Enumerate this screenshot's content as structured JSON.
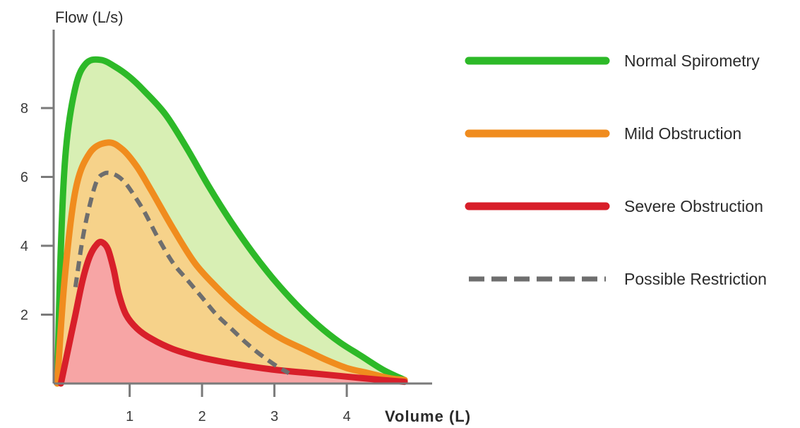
{
  "chart_data": {
    "type": "area",
    "xlabel": "Volume (L)",
    "ylabel": "Flow (L/s)",
    "xlim": [
      -0.05,
      5.2
    ],
    "ylim": [
      0,
      10.5
    ],
    "x_ticks": [
      1,
      2,
      3,
      4
    ],
    "y_ticks": [
      2,
      4,
      6,
      8
    ],
    "grid": false,
    "legend_position": "right",
    "series": [
      {
        "name": "Normal Spirometry",
        "color": "#2db928",
        "fill": "#d8efb4",
        "style": "solid",
        "x": [
          0,
          0.05,
          0.12,
          0.25,
          0.4,
          0.6,
          0.8,
          1.0,
          1.2,
          1.5,
          1.8,
          2.1,
          2.4,
          2.7,
          3.0,
          3.3,
          3.6,
          3.9,
          4.2,
          4.5,
          4.8
        ],
        "y": [
          0,
          4.0,
          6.8,
          8.6,
          9.3,
          9.4,
          9.2,
          8.9,
          8.5,
          7.8,
          6.8,
          5.7,
          4.7,
          3.8,
          3.0,
          2.3,
          1.7,
          1.2,
          0.8,
          0.4,
          0.1
        ]
      },
      {
        "name": "Mild Obstruction",
        "color": "#f08c1e",
        "fill": "#f6d28a",
        "style": "solid",
        "x": [
          0,
          0.1,
          0.25,
          0.45,
          0.7,
          0.9,
          1.1,
          1.3,
          1.6,
          1.9,
          2.2,
          2.5,
          2.8,
          3.1,
          3.4,
          3.7,
          4.0,
          4.3,
          4.6,
          4.8
        ],
        "y": [
          0,
          3.0,
          5.6,
          6.7,
          7.0,
          6.8,
          6.3,
          5.6,
          4.5,
          3.5,
          2.8,
          2.2,
          1.7,
          1.3,
          1.0,
          0.7,
          0.45,
          0.3,
          0.15,
          0.1
        ]
      },
      {
        "name": "Severe Obstruction",
        "color": "#d81f2a",
        "fill": "#f7a5a5",
        "style": "solid",
        "x": [
          0.05,
          0.15,
          0.25,
          0.35,
          0.45,
          0.55,
          0.62,
          0.7,
          0.78,
          0.85,
          0.95,
          1.1,
          1.3,
          1.6,
          2.0,
          2.5,
          3.0,
          3.5,
          4.0,
          4.5,
          4.8
        ],
        "y": [
          0,
          1.0,
          2.0,
          3.0,
          3.7,
          4.05,
          4.1,
          3.9,
          3.3,
          2.6,
          2.0,
          1.6,
          1.3,
          1.0,
          0.75,
          0.55,
          0.4,
          0.3,
          0.2,
          0.1,
          0.05
        ]
      },
      {
        "name": "Possible Restriction",
        "color": "#6e6e6e",
        "style": "dashed",
        "x": [
          0.25,
          0.35,
          0.45,
          0.55,
          0.65,
          0.75,
          0.85,
          0.95,
          1.05,
          1.2,
          1.4,
          1.6,
          1.8,
          2.0,
          2.2,
          2.4,
          2.6,
          2.8,
          3.0,
          3.2
        ],
        "y": [
          2.8,
          4.2,
          5.2,
          5.9,
          6.1,
          6.1,
          6.0,
          5.8,
          5.5,
          5.0,
          4.2,
          3.5,
          3.0,
          2.5,
          2.0,
          1.6,
          1.2,
          0.85,
          0.55,
          0.3
        ]
      }
    ]
  }
}
